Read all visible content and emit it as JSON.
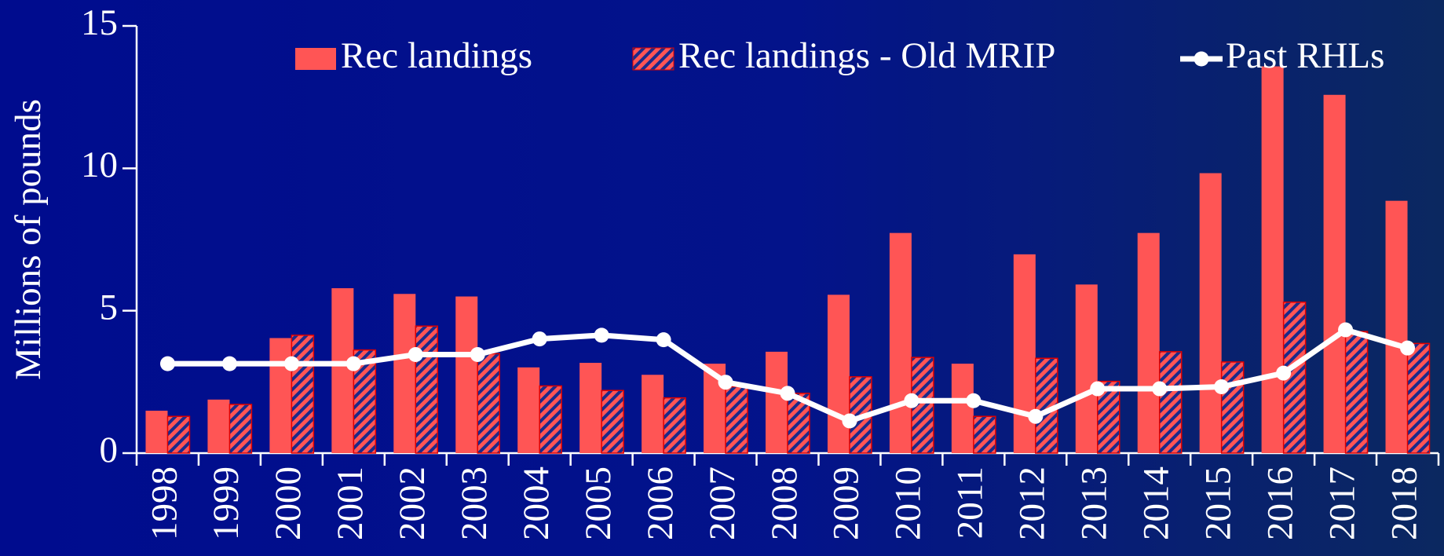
{
  "chart_data": {
    "type": "bar",
    "ylabel": "Millions of pounds",
    "categories": [
      "1998",
      "1999",
      "2000",
      "2001",
      "2002",
      "2003",
      "2004",
      "2005",
      "2006",
      "2007",
      "2008",
      "2009",
      "2010",
      "2011",
      "2012",
      "2013",
      "2014",
      "2015",
      "2016",
      "2017",
      "2018"
    ],
    "series": [
      {
        "name": "Rec landings",
        "type": "bar",
        "color": "#ff5555",
        "values": [
          1.49,
          1.88,
          4.04,
          5.79,
          5.59,
          5.5,
          3.01,
          3.17,
          2.75,
          3.14,
          3.56,
          5.56,
          7.73,
          3.14,
          6.98,
          5.92,
          7.73,
          9.83,
          13.58,
          12.58,
          8.86
        ]
      },
      {
        "name": "Rec landings - Old MRIP",
        "type": "hatched-bar",
        "color": "#ff5555",
        "hatch_color": "#1a2a8a",
        "values": [
          1.29,
          1.71,
          4.14,
          3.62,
          4.46,
          3.49,
          2.36,
          2.2,
          1.94,
          2.33,
          2.1,
          2.68,
          3.36,
          1.29,
          3.33,
          2.52,
          3.56,
          3.2,
          5.3,
          4.27,
          3.85
        ]
      },
      {
        "name": "Past RHLs",
        "type": "line",
        "color": "#ffffff",
        "values": [
          3.14,
          3.14,
          3.14,
          3.14,
          3.46,
          3.46,
          4.01,
          4.14,
          3.98,
          2.49,
          2.1,
          1.13,
          1.84,
          1.84,
          1.29,
          2.26,
          2.26,
          2.33,
          2.81,
          4.33,
          3.69
        ]
      }
    ],
    "ylim": [
      0,
      15
    ],
    "yticks": [
      0,
      5,
      10,
      15
    ],
    "grid": false,
    "legend": "top"
  }
}
